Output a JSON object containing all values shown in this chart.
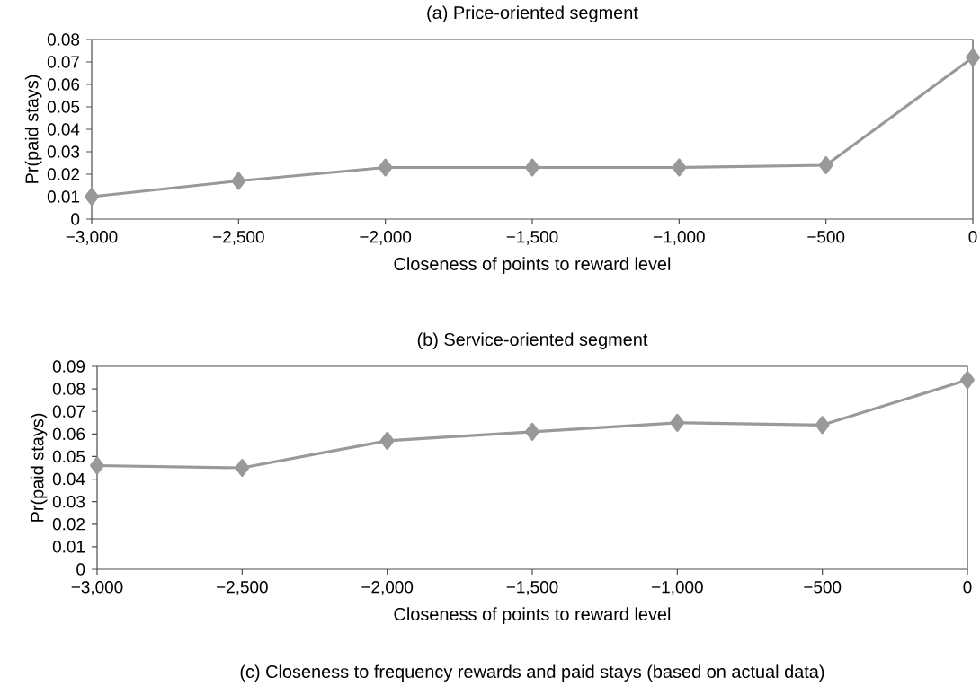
{
  "chart_data": [
    {
      "type": "line",
      "title": "(a) Price-oriented segment",
      "xlabel": "Closeness of points to reward level",
      "ylabel": "Pr(paid stays)",
      "x": [
        -3000,
        -2500,
        -2000,
        -1500,
        -1000,
        -500,
        0
      ],
      "values": [
        0.01,
        0.017,
        0.023,
        0.023,
        0.023,
        0.024,
        0.072
      ],
      "color": "#999999",
      "marker": "diamond",
      "xlim": [
        -3000,
        0
      ],
      "ylim": [
        0,
        0.08
      ],
      "xticks": [
        {
          "value": -3000,
          "label": "−3,000"
        },
        {
          "value": -2500,
          "label": "−2,500"
        },
        {
          "value": -2000,
          "label": "−2,000"
        },
        {
          "value": -1500,
          "label": "−1,500"
        },
        {
          "value": -1000,
          "label": "−1,000"
        },
        {
          "value": -500,
          "label": "−500"
        },
        0
      ],
      "yticks": [
        0,
        0.01,
        0.02,
        0.03,
        0.04,
        0.05,
        0.06,
        0.07,
        0.08
      ]
    },
    {
      "type": "line",
      "title": "(b) Service-oriented segment",
      "xlabel": "Closeness of points to reward level",
      "ylabel": "Pr(paid stays)",
      "x": [
        -3000,
        -2500,
        -2000,
        -1500,
        -1000,
        -500,
        0
      ],
      "values": [
        0.046,
        0.045,
        0.057,
        0.061,
        0.065,
        0.064,
        0.084
      ],
      "color": "#999999",
      "marker": "diamond",
      "xlim": [
        -3000,
        0
      ],
      "ylim": [
        0,
        0.09
      ],
      "xticks": [
        {
          "value": -3000,
          "label": "−3,000"
        },
        {
          "value": -2500,
          "label": "−2,500"
        },
        {
          "value": -2000,
          "label": "−2,000"
        },
        {
          "value": -1500,
          "label": "−1,500"
        },
        {
          "value": -1000,
          "label": "−1,000"
        },
        {
          "value": -500,
          "label": "−500"
        },
        0
      ],
      "yticks": [
        0,
        0.01,
        0.02,
        0.03,
        0.04,
        0.05,
        0.06,
        0.07,
        0.08,
        0.09
      ],
      "annotations": [
        "(c) Closeness to frequency rewards and paid stays (based on actual data)"
      ]
    }
  ]
}
